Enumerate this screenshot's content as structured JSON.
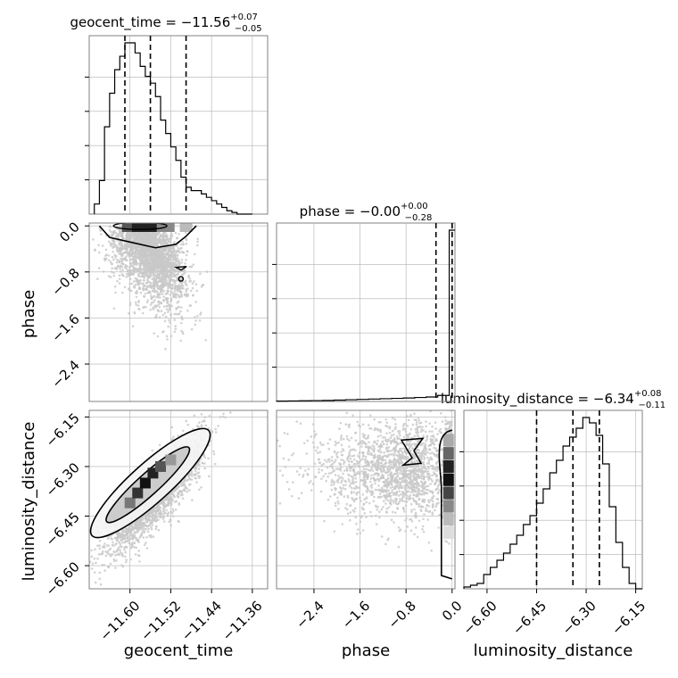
{
  "chart_data": {
    "type": "corner",
    "parameters": [
      "geocent_time",
      "phase",
      "luminosity_distance"
    ],
    "axis_labels": {
      "geocent_time": "geocent_time",
      "phase": "phase",
      "luminosity_distance": "luminosity_distance"
    },
    "titles": {
      "geocent_time": {
        "prefix": "geocent_time = ",
        "value": "−11.56",
        "plus": "+0.07",
        "minus": "−0.05"
      },
      "phase": {
        "prefix": "phase = ",
        "value": "−0.00",
        "plus": "+0.00",
        "minus": "−0.28"
      },
      "luminosity_distance": {
        "prefix": "luminosity_distance = ",
        "value": "−6.34",
        "plus": "+0.08",
        "minus": "−0.11"
      }
    },
    "ranges": {
      "geocent_time": [
        -11.68,
        -11.33
      ],
      "phase": [
        -3.05,
        0.05
      ],
      "luminosity_distance": [
        -6.67,
        -6.13
      ]
    },
    "ticks": {
      "geocent_time": {
        "values": [
          -11.6,
          -11.52,
          -11.44,
          -11.36
        ],
        "labels": [
          "−11.60",
          "−11.52",
          "−11.44",
          "−11.36"
        ]
      },
      "phase": {
        "values": [
          -2.4,
          -1.6,
          -0.8,
          0.0
        ],
        "labels": [
          "−2.4",
          "−1.6",
          "−0.8",
          "0.0"
        ]
      },
      "luminosity_distance": {
        "values": [
          -6.6,
          -6.45,
          -6.3,
          -6.15
        ],
        "labels": [
          "−6.60",
          "−6.45",
          "−6.30",
          "−6.15"
        ]
      }
    },
    "quantiles": {
      "geocent_time": [
        -11.61,
        -11.56,
        -11.49
      ],
      "phase": [
        -0.28,
        0.0,
        0.0
      ],
      "luminosity_distance": [
        -6.45,
        -6.34,
        -6.26
      ]
    },
    "histograms": {
      "geocent_time": {
        "edges": [
          -11.67,
          -11.66,
          -11.65,
          -11.64,
          -11.63,
          -11.62,
          -11.61,
          -11.6,
          -11.59,
          -11.58,
          -11.57,
          -11.56,
          -11.55,
          -11.54,
          -11.53,
          -11.52,
          -11.51,
          -11.5,
          -11.49,
          -11.48,
          -11.47,
          -11.46,
          -11.45,
          -11.44,
          -11.43,
          -11.42,
          -11.41,
          -11.4,
          -11.39,
          -11.38,
          -11.37,
          -11.36
        ],
        "counts": [
          3,
          10,
          26,
          36,
          43,
          47,
          51,
          51,
          48,
          44,
          41,
          39,
          35,
          28,
          24,
          20,
          16,
          11,
          8,
          7,
          7,
          6,
          5,
          4,
          3,
          2,
          1,
          0.5,
          0,
          0,
          0
        ]
      },
      "phase": {
        "edges": [
          -3.05,
          -2.85,
          -2.65,
          -2.45,
          -2.25,
          -2.05,
          -1.85,
          -1.65,
          -1.45,
          -1.25,
          -1.05,
          -0.85,
          -0.65,
          -0.45,
          -0.25,
          -0.05,
          0.05
        ],
        "counts": [
          0.2,
          0.3,
          0.4,
          0.5,
          0.6,
          0.8,
          1,
          1.2,
          1.4,
          1.6,
          1.8,
          2,
          2.3,
          2.6,
          3.5,
          100
        ]
      },
      "luminosity_distance": {
        "edges": [
          -6.67,
          -6.65,
          -6.63,
          -6.61,
          -6.59,
          -6.57,
          -6.55,
          -6.53,
          -6.51,
          -6.49,
          -6.47,
          -6.45,
          -6.43,
          -6.41,
          -6.39,
          -6.37,
          -6.35,
          -6.33,
          -6.31,
          -6.29,
          -6.27,
          -6.25,
          -6.23,
          -6.21,
          -6.19,
          -6.17,
          -6.15,
          -6.13
        ],
        "counts": [
          1,
          2,
          3,
          8,
          12,
          16,
          20,
          25,
          30,
          36,
          41,
          48,
          56,
          65,
          72,
          80,
          85,
          90,
          96,
          93,
          86,
          70,
          46,
          26,
          12,
          3,
          0
        ]
      }
    },
    "grid": true,
    "scatter_color": "#c8c8c8",
    "contour_color": "#000000"
  }
}
